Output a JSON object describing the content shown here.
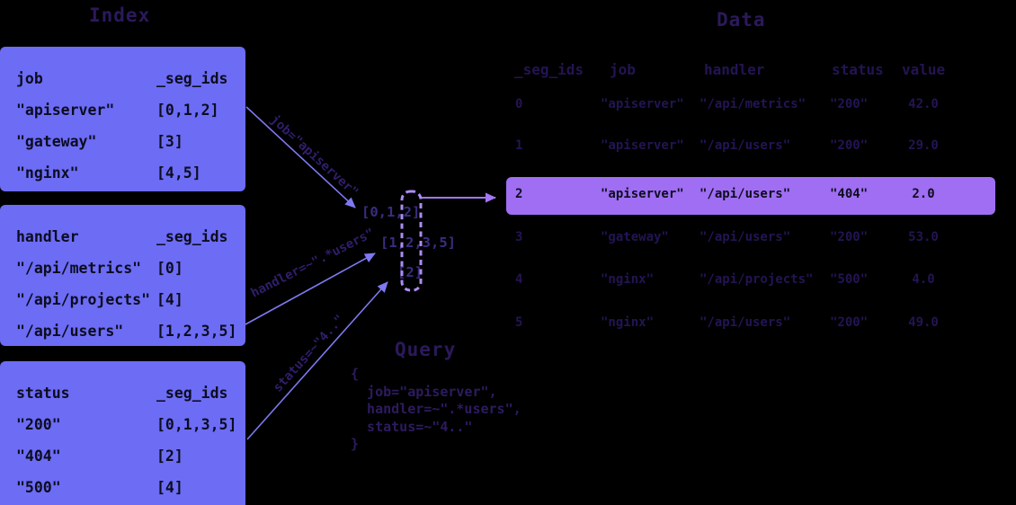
{
  "titles": {
    "index": "Index",
    "data": "Data"
  },
  "index_tables": [
    {
      "key": "job",
      "id_header": "_seg_ids",
      "rows": [
        [
          "\"apiserver\"",
          "[0,1,2]"
        ],
        [
          "\"gateway\"",
          "[3]"
        ],
        [
          "\"nginx\"",
          "[4,5]"
        ]
      ]
    },
    {
      "key": "handler",
      "id_header": "_seg_ids",
      "rows": [
        [
          "\"/api/metrics\"",
          "[0]"
        ],
        [
          "\"/api/projects\"",
          "[4]"
        ],
        [
          "\"/api/users\"",
          "[1,2,3,5]"
        ]
      ]
    },
    {
      "key": "status",
      "id_header": "_seg_ids",
      "rows": [
        [
          "\"200\"",
          "[0,1,3,5]"
        ],
        [
          "\"404\"",
          "[2]"
        ],
        [
          "\"500\"",
          "[4]"
        ]
      ]
    }
  ],
  "data_table": {
    "headers": [
      "_seg_ids",
      "job",
      "handler",
      "status",
      "value"
    ],
    "rows": [
      [
        "0",
        "\"apiserver\"",
        "\"/api/metrics\"",
        "\"200\"",
        "42.0"
      ],
      [
        "1",
        "\"apiserver\"",
        "\"/api/users\"",
        "\"200\"",
        "29.0"
      ],
      [
        "2",
        "\"apiserver\"",
        "\"/api/users\"",
        "\"404\"",
        "2.0"
      ],
      [
        "3",
        "\"gateway\"",
        "\"/api/users\"",
        "\"200\"",
        "53.0"
      ],
      [
        "4",
        "\"nginx\"",
        "\"/api/projects\"",
        "\"500\"",
        "4.0"
      ],
      [
        "5",
        "\"nginx\"",
        "\"/api/users\"",
        "\"200\"",
        "49.0"
      ]
    ],
    "highlighted_row": 2
  },
  "intersection": {
    "lists": [
      "[0,1,2]",
      "[1,2,3,5]",
      "[2]"
    ],
    "matched_segment": "2"
  },
  "arrow_labels": [
    "job=\"apiserver\"",
    "handler=~\".*users\"",
    "status=~\"4..\""
  ],
  "query": {
    "title": "Query",
    "code": "{\n  job=\"apiserver\",\n  handler=~\".*users\",\n  status=~\"4..\"\n}"
  },
  "colors": {
    "bg": "#000000",
    "tableBg": "#6c6cf5",
    "tableText": "#0c0c20",
    "titleText": "#2b195c",
    "dataText": "#241453",
    "listText": "#3b2c80",
    "labelText": "#301e6b",
    "queryText": "#2d1b60",
    "arrowBlue": "#7e79f0",
    "arrowPurple": "#a277f2",
    "dashColor": "#ab8df5",
    "highlightBg": "#a06ef2",
    "highlightText": "#0d0d1f"
  }
}
